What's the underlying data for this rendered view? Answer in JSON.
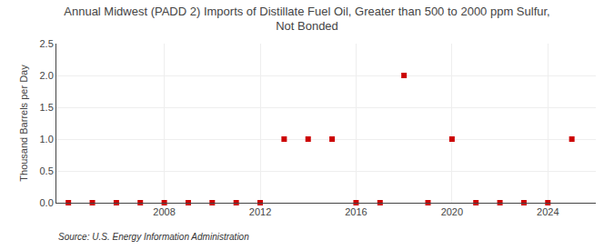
{
  "chart_data": {
    "type": "scatter",
    "title": "Annual Midwest (PADD 2) Imports of Distillate Fuel Oil, Greater than 500 to 2000 ppm Sulfur,\nNot Bonded",
    "ylabel": "Thousand Barrels per Day",
    "source": "Source: U.S. Energy Information Administration",
    "x": [
      2004,
      2005,
      2006,
      2007,
      2008,
      2009,
      2010,
      2011,
      2012,
      2013,
      2014,
      2015,
      2016,
      2017,
      2018,
      2019,
      2020,
      2021,
      2022,
      2023,
      2024,
      2025
    ],
    "values": [
      0.0,
      0.0,
      0.0,
      0.0,
      0.0,
      0.0,
      0.0,
      0.0,
      0.0,
      1.0,
      1.0,
      1.0,
      0.0,
      0.0,
      2.0,
      0.0,
      1.0,
      0.0,
      0.0,
      0.0,
      0.0,
      1.0
    ],
    "color": "#cc0000",
    "marker": "square",
    "xlim": [
      2003.5,
      2026
    ],
    "ylim": [
      0.0,
      2.5
    ],
    "xticks": [
      2008,
      2012,
      2016,
      2020,
      2024
    ],
    "yticks": [
      {
        "value": 0.0,
        "label": "0.0"
      },
      0.5,
      {
        "value": 1.0,
        "label": "1.0"
      },
      1.5,
      {
        "value": 2.0,
        "label": "2.0"
      },
      2.5
    ],
    "grid": true
  }
}
